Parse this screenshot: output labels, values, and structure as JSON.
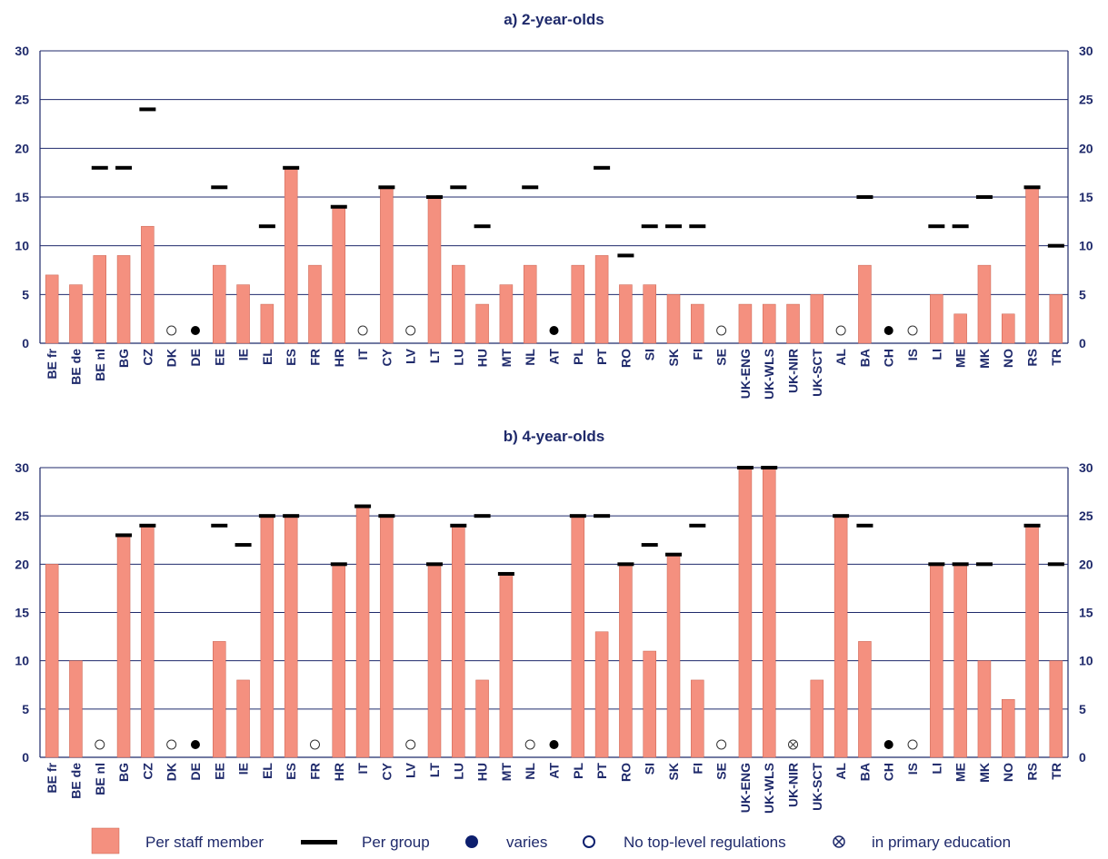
{
  "colors": {
    "bar": "#f4907f",
    "bar_stroke": "#c8604e",
    "group_marker": "#000000",
    "axis": "#1f2a6b",
    "varies_marker": "#0d1f6e"
  },
  "chart_data": [
    {
      "type": "bar",
      "title": "a) 2-year-olds",
      "ylim": [
        0,
        30
      ],
      "yticks": [
        0,
        5,
        10,
        15,
        20,
        25,
        30
      ],
      "grid": true,
      "categories": [
        "BE fr",
        "BE de",
        "BE nl",
        "BG",
        "CZ",
        "DK",
        "DE",
        "EE",
        "IE",
        "EL",
        "ES",
        "FR",
        "HR",
        "IT",
        "CY",
        "LV",
        "LT",
        "LU",
        "HU",
        "MT",
        "NL",
        "AT",
        "PL",
        "PT",
        "RO",
        "SI",
        "SK",
        "FI",
        "SE",
        "UK-ENG",
        "UK-WLS",
        "UK-NIR",
        "UK-SCT",
        "AL",
        "BA",
        "CH",
        "IS",
        "LI",
        "ME",
        "MK",
        "NO",
        "RS",
        "TR"
      ],
      "series": [
        {
          "name": "Per staff member",
          "values": [
            7,
            6,
            9,
            9,
            12,
            null,
            null,
            8,
            6,
            4,
            18,
            8,
            14,
            null,
            16,
            null,
            15,
            8,
            4,
            6,
            8,
            null,
            8,
            9,
            6,
            6,
            5,
            4,
            null,
            4,
            4,
            4,
            5,
            null,
            8,
            null,
            null,
            5,
            3,
            8,
            3,
            16,
            5
          ]
        },
        {
          "name": "Per group",
          "values": [
            null,
            null,
            18,
            18,
            24,
            null,
            null,
            16,
            null,
            12,
            18,
            null,
            14,
            null,
            16,
            null,
            15,
            16,
            12,
            null,
            16,
            null,
            null,
            18,
            9,
            12,
            12,
            12,
            null,
            null,
            null,
            null,
            null,
            null,
            15,
            null,
            null,
            12,
            12,
            15,
            null,
            16,
            10
          ]
        }
      ],
      "markers": [
        "",
        "",
        "",
        "",
        "",
        "none",
        "varies",
        "",
        "",
        "",
        "",
        "",
        "",
        "none",
        "",
        "none",
        "",
        "",
        "",
        "",
        "",
        "varies",
        "",
        "",
        "",
        "",
        "",
        "",
        "none",
        "",
        "",
        "",
        "",
        "none",
        "",
        "varies",
        "none",
        "",
        "",
        "",
        "",
        "",
        ""
      ]
    },
    {
      "type": "bar",
      "title": "b) 4-year-olds",
      "ylim": [
        0,
        30
      ],
      "yticks": [
        0,
        5,
        10,
        15,
        20,
        25,
        30
      ],
      "grid": true,
      "categories": [
        "BE fr",
        "BE de",
        "BE nl",
        "BG",
        "CZ",
        "DK",
        "DE",
        "EE",
        "IE",
        "EL",
        "ES",
        "FR",
        "HR",
        "IT",
        "CY",
        "LV",
        "LT",
        "LU",
        "HU",
        "MT",
        "NL",
        "AT",
        "PL",
        "PT",
        "RO",
        "SI",
        "SK",
        "FI",
        "SE",
        "UK-ENG",
        "UK-WLS",
        "UK-NIR",
        "UK-SCT",
        "AL",
        "BA",
        "CH",
        "IS",
        "LI",
        "ME",
        "MK",
        "NO",
        "RS",
        "TR"
      ],
      "series": [
        {
          "name": "Per staff member",
          "values": [
            20,
            10,
            null,
            23,
            24,
            null,
            null,
            12,
            8,
            25,
            25,
            null,
            20,
            26,
            25,
            null,
            20,
            24,
            8,
            19,
            null,
            null,
            25,
            13,
            20,
            11,
            21,
            8,
            null,
            30,
            30,
            null,
            8,
            25,
            12,
            null,
            null,
            20,
            20,
            10,
            6,
            24,
            10
          ]
        },
        {
          "name": "Per group",
          "values": [
            null,
            null,
            null,
            23,
            24,
            null,
            null,
            24,
            22,
            25,
            25,
            null,
            20,
            26,
            25,
            null,
            20,
            24,
            25,
            19,
            null,
            null,
            25,
            25,
            20,
            22,
            21,
            24,
            null,
            30,
            30,
            null,
            null,
            25,
            24,
            null,
            null,
            20,
            20,
            20,
            null,
            24,
            20
          ]
        }
      ],
      "markers": [
        "",
        "",
        "none",
        "",
        "",
        "none",
        "varies",
        "",
        "",
        "",
        "",
        "none",
        "",
        "",
        "",
        "none",
        "",
        "",
        "",
        "",
        "none",
        "varies",
        "",
        "",
        "",
        "",
        "",
        "",
        "none",
        "",
        "",
        "primary",
        "",
        "",
        "",
        "varies",
        "none",
        "",
        "",
        "",
        "",
        "",
        ""
      ]
    }
  ],
  "legend": {
    "per_staff": "Per staff member",
    "per_group": "Per group",
    "varies": "varies",
    "none": "No top-level regulations",
    "primary": "in primary education"
  }
}
